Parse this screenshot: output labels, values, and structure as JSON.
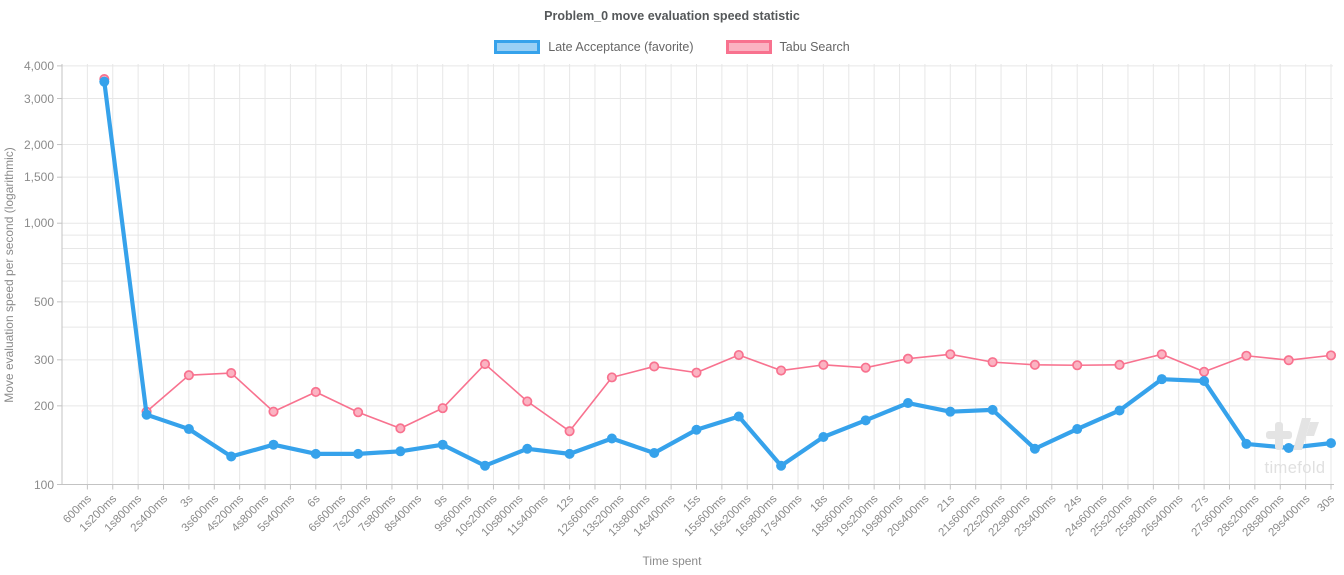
{
  "chart_data": {
    "type": "line",
    "title": "Problem_0 move evaluation speed statistic",
    "xlabel": "Time spent",
    "ylabel": "Move evaluation speed per second (logarithmic)",
    "y_scale": "logarithmic",
    "ylim": [
      100,
      4000
    ],
    "grid": true,
    "legend_position": "top",
    "x_axis": {
      "min_ms": 0,
      "max_ms": 30000,
      "tick_interval_ms": 600,
      "tick_labels": [
        "600ms",
        "1s200ms",
        "1s800ms",
        "2s400ms",
        "3s",
        "3s600ms",
        "4s200ms",
        "4s800ms",
        "5s400ms",
        "6s",
        "6s600ms",
        "7s200ms",
        "7s800ms",
        "8s400ms",
        "9s",
        "9s600ms",
        "10s200ms",
        "10s800ms",
        "11s400ms",
        "12s",
        "12s600ms",
        "13s200ms",
        "13s800ms",
        "14s400ms",
        "15s",
        "15s600ms",
        "16s200ms",
        "16s800ms",
        "17s400ms",
        "18s",
        "18s600ms",
        "19s200ms",
        "19s800ms",
        "20s400ms",
        "21s",
        "21s600ms",
        "22s200ms",
        "22s800ms",
        "23s400ms",
        "24s",
        "24s600ms",
        "25s200ms",
        "25s800ms",
        "26s400ms",
        "27s",
        "27s600ms",
        "28s200ms",
        "28s800ms",
        "29s400ms",
        "30s"
      ]
    },
    "y_axis": {
      "gridline_values": [
        100,
        200,
        300,
        400,
        500,
        600,
        700,
        800,
        900,
        1000,
        1500,
        2000,
        3000,
        4000
      ],
      "tick_labels": [
        {
          "value": 4000,
          "label": "4,000"
        },
        {
          "value": 3000,
          "label": "3,000"
        },
        {
          "value": 2000,
          "label": "2,000"
        },
        {
          "value": 1500,
          "label": "1,500"
        },
        {
          "value": 1000,
          "label": "1,000"
        },
        {
          "value": 500,
          "label": "500"
        },
        {
          "value": 300,
          "label": "300"
        },
        {
          "value": 200,
          "label": "200"
        },
        {
          "value": 100,
          "label": "100"
        }
      ]
    },
    "x_seconds": [
      1,
      2,
      3,
      4,
      5,
      6,
      7,
      8,
      9,
      10,
      11,
      12,
      13,
      14,
      15,
      16,
      17,
      18,
      19,
      20,
      21,
      22,
      23,
      24,
      25,
      26,
      27,
      28,
      29,
      30
    ],
    "series": [
      {
        "name": "Tabu Search",
        "color": "#f8728f",
        "fill_color": "#fbb3c2",
        "marker": "open-circle",
        "line_width": 1.6,
        "values": [
          3560,
          190,
          262,
          267,
          190,
          226,
          189,
          164,
          196,
          289,
          208,
          160,
          257,
          283,
          268,
          313,
          273,
          287,
          280,
          303,
          315,
          294,
          287,
          286,
          287,
          315,
          270,
          311,
          299,
          312
        ]
      },
      {
        "name": "Late Acceptance (favorite)",
        "color": "#36a2eb",
        "fill_color": "#9ad0f5",
        "marker": "filled-circle",
        "line_width": 4.2,
        "values": [
          3480,
          185,
          163,
          128,
          142,
          131,
          131,
          134,
          142,
          118,
          137,
          131,
          150,
          132,
          162,
          182,
          118,
          152,
          176,
          205,
          190,
          193,
          137,
          163,
          192,
          253,
          249,
          143,
          138,
          144
        ]
      }
    ],
    "watermark": "timefold"
  },
  "legend": {
    "items": [
      {
        "label": "Late Acceptance (favorite)"
      },
      {
        "label": "Tabu Search"
      }
    ]
  }
}
